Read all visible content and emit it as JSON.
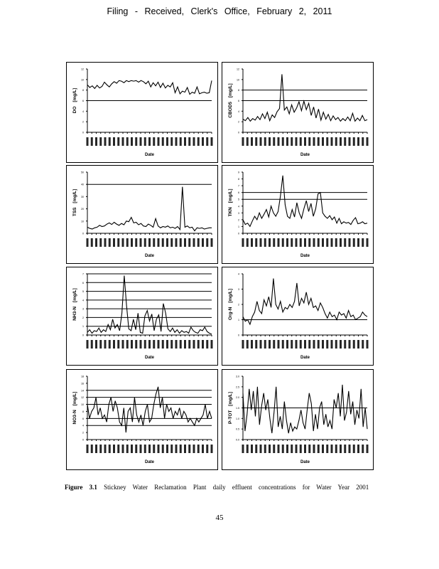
{
  "header": {
    "text": "Filing - Received, Clerk's Office, February 2, 2011"
  },
  "caption": {
    "label": "Figure 3.1",
    "text": "Stickney Water Reclamation Plant daily effluent concentrations for Water Year 2001"
  },
  "page_number": "45",
  "chart_data": [
    {
      "type": "line",
      "ylabel": "DO",
      "unit": "[mg/L]",
      "xlabel": "Date",
      "ylim": [
        0,
        12
      ],
      "yticks": [
        "0",
        "2",
        "4",
        "6",
        "8",
        "10",
        "12"
      ],
      "ref_lines": [
        6
      ],
      "values": [
        9,
        8.5,
        8.8,
        8.3,
        8.9,
        8.4,
        8.7,
        9.5,
        9,
        8.6,
        9.2,
        9.6,
        9.3,
        9.8,
        9.7,
        9.4,
        9.8,
        9.6,
        9.8,
        9.7,
        9.8,
        9.5,
        9.8,
        9.6,
        9.2,
        9.7,
        8.6,
        9.4,
        8.8,
        9.5,
        8.5,
        9.3,
        8.4,
        8.9,
        8.6,
        9.4,
        7.5,
        8.6,
        7.3,
        7.8,
        7.6,
        8.5,
        7.2,
        7.6,
        7.4,
        8.6,
        7.3,
        7.5,
        7.6,
        7.4,
        7.5,
        9.8
      ]
    },
    {
      "type": "line",
      "ylabel": "CBOD5",
      "unit": "[mg/L]",
      "xlabel": "Date",
      "ylim": [
        0,
        12
      ],
      "yticks": [
        "0",
        "2",
        "4",
        "6",
        "8",
        "10",
        "12"
      ],
      "ref_lines": [
        6,
        8
      ],
      "values": [
        2.5,
        2.2,
        2.8,
        2.1,
        2.6,
        2.3,
        3,
        2.4,
        3.5,
        2.6,
        3.8,
        2.2,
        3.3,
        2.8,
        3.9,
        4.5,
        11,
        4.2,
        4.8,
        3.5,
        5.2,
        3.8,
        4.6,
        5.8,
        4.1,
        5.9,
        4.3,
        5.5,
        3.2,
        4.8,
        2.7,
        4.4,
        2.3,
        3.8,
        2.5,
        3.4,
        2.2,
        3.1,
        2.4,
        2.8,
        2.1,
        2.6,
        2.2,
        2.9,
        2.2,
        3.6,
        2.1,
        2.7,
        2.2,
        3.2,
        2.2,
        2.4
      ]
    },
    {
      "type": "line",
      "ylabel": "TSS",
      "unit": "[mg/L]",
      "xlabel": "Date",
      "ylim": [
        0,
        50
      ],
      "yticks": [
        "0",
        "10",
        "20",
        "30",
        "40",
        "50"
      ],
      "ref_lines": [
        40
      ],
      "values": [
        5,
        4,
        3.5,
        4.5,
        5,
        6.5,
        5.5,
        6,
        7.5,
        8.5,
        7.2,
        9,
        7.5,
        6.5,
        8,
        7,
        10,
        9.5,
        13,
        8.5,
        9,
        7,
        8,
        6,
        5.5,
        7.5,
        6.5,
        5,
        12,
        6,
        4.5,
        5.5,
        5,
        6,
        4.5,
        5,
        4,
        5.5,
        3,
        38,
        5,
        6,
        4.5,
        5,
        2,
        4.5,
        4,
        4.5,
        3.5,
        4,
        4.5,
        4.5
      ]
    },
    {
      "type": "line",
      "ylabel": "TKN",
      "unit": "[mg/L]",
      "xlabel": "Date",
      "ylim": [
        0,
        9
      ],
      "yticks": [
        "0",
        "1",
        "2",
        "3",
        "4",
        "5",
        "6",
        "7",
        "8",
        "9"
      ],
      "ref_lines": [
        5,
        6
      ],
      "values": [
        2,
        1.3,
        1.5,
        1,
        1.8,
        2.5,
        2,
        3,
        2.2,
        2.8,
        3.5,
        2.4,
        4,
        3,
        2.5,
        3.2,
        5.5,
        8.5,
        4.2,
        2.5,
        2.2,
        3.5,
        2.4,
        4.5,
        3,
        2.2,
        3.6,
        4.8,
        3.2,
        4.4,
        2.5,
        3.6,
        5.8,
        6,
        3,
        2.5,
        2.2,
        2.6,
        2,
        2.4,
        1.5,
        2.2,
        1.4,
        1.7,
        1.5,
        1.6,
        1.3,
        1.9,
        2.3,
        1.4,
        1.5,
        1.7,
        1.4,
        1.5
      ]
    },
    {
      "type": "line",
      "ylabel": "NH3-N",
      "unit": "[mg/L]",
      "xlabel": "Date",
      "ylim": [
        0,
        7
      ],
      "yticks": [
        "0",
        "1",
        "2",
        "3",
        "4",
        "5",
        "6",
        "7"
      ],
      "ref_lines": [
        1,
        2,
        3,
        4,
        5,
        6,
        7
      ],
      "values": [
        0.3,
        0.6,
        0.2,
        0.5,
        0.4,
        0.8,
        0.3,
        0.6,
        0.4,
        1.2,
        0.6,
        1.8,
        0.8,
        1.2,
        0.5,
        2.5,
        6.8,
        3.4,
        0.7,
        0.5,
        1.8,
        0.6,
        2.5,
        0.3,
        0.2,
        2.2,
        2.8,
        1.6,
        2.4,
        0.5,
        1.8,
        2.3,
        0.4,
        3.6,
        2.5,
        0.7,
        0.4,
        0.8,
        0.3,
        0.6,
        0.2,
        0.5,
        0.3,
        0.4,
        0.2,
        0.9,
        0.5,
        0.3,
        0.2,
        0.6,
        0.5,
        0.9,
        0.4,
        0.2,
        0.1
      ]
    },
    {
      "type": "line",
      "ylabel": "Org-N",
      "unit": "[mg/L]",
      "xlabel": "Date",
      "ylim": [
        0,
        4
      ],
      "yticks": [
        "0",
        "1",
        "2",
        "3",
        "4"
      ],
      "ref_lines": [
        1
      ],
      "values": [
        1.2,
        0.9,
        1,
        0.7,
        1.2,
        1.5,
        2.2,
        1.6,
        1.4,
        2.3,
        1.9,
        2.5,
        1.8,
        3.7,
        2,
        1.7,
        2.2,
        1.5,
        1.8,
        1.7,
        2,
        1.8,
        2.2,
        3.4,
        1.9,
        2.4,
        2.1,
        2.8,
        2,
        2.4,
        1.8,
        1.9,
        1.6,
        2.1,
        1.8,
        1.4,
        1.1,
        1.5,
        1.2,
        1.3,
        1,
        1.5,
        1.3,
        1.4,
        1.1,
        1.6,
        1.2,
        1.3,
        1,
        1.1,
        1.2,
        1.5,
        1.3,
        1.2
      ]
    },
    {
      "type": "line",
      "ylabel": "NO3-N",
      "unit": "[mg/L]",
      "xlabel": "Date",
      "ylim": [
        0,
        18
      ],
      "yticks": [
        "0",
        "2",
        "4",
        "6",
        "8",
        "10",
        "12",
        "14",
        "16",
        "18"
      ],
      "ref_lines": [
        4,
        6,
        10,
        12,
        14
      ],
      "values": [
        10,
        6,
        8,
        9,
        12,
        7,
        9,
        6,
        7,
        5,
        10,
        12,
        8,
        11,
        9,
        5,
        4,
        9,
        2,
        8,
        9,
        5,
        12,
        7,
        5,
        7,
        4,
        8,
        10,
        5,
        6,
        10,
        13,
        15,
        9,
        12,
        6,
        10,
        8,
        9,
        6,
        8,
        7,
        9,
        6,
        8,
        7,
        5,
        6,
        5,
        4,
        6,
        5,
        6,
        7,
        10,
        6,
        8,
        6
      ]
    },
    {
      "type": "line",
      "ylabel": "P-TOT",
      "unit": "[mg/L]",
      "xlabel": "Date",
      "ylim": [
        0,
        3
      ],
      "yticks": [
        "0.0",
        "0.5",
        "1.0",
        "1.5",
        "2.0",
        "2.5",
        "3.0"
      ],
      "ref_lines": [
        1.5
      ],
      "values": [
        2.2,
        0.4,
        1.2,
        2.4,
        1.4,
        2.3,
        1.1,
        2.5,
        0.7,
        1.6,
        2.2,
        1.4,
        1.9,
        1,
        0.3,
        1.3,
        2.5,
        0.6,
        1.1,
        0.5,
        1.8,
        0.9,
        0.3,
        0.8,
        0.4,
        0.6,
        0.5,
        0.9,
        1.4,
        0.8,
        0.5,
        1.4,
        2.2,
        1.7,
        0.4,
        1.2,
        0.5,
        1.5,
        1.8,
        0.7,
        1.2,
        0.6,
        0.9,
        0.5,
        1.9,
        1.5,
        2.2,
        1.1,
        2.6,
        0.9,
        1.3,
        2.3,
        1.2,
        1.8,
        0.7,
        1.4,
        1,
        2.4,
        0.6,
        1.5,
        0.5
      ]
    }
  ]
}
